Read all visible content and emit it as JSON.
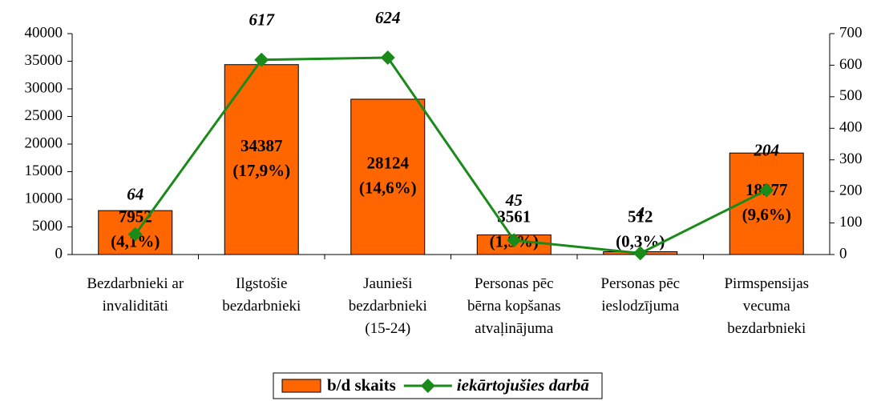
{
  "chart_data": {
    "type": "bar-line",
    "categories": [
      "Bezdarbnieki ar\ninvaliditāti",
      "Ilgstošie\nbezdarbnieki",
      "Jaunieši\nbezdarbnieki\n(15-24)",
      "Personas pēc\nbērna kopšanas\natvaļinājuma",
      "Personas pēc\nieslodzījuma",
      "Pirmspensijas\nvecuma\nbezdarbnieki"
    ],
    "series": [
      {
        "name": "b/d skaits",
        "type": "bar",
        "color": "#ff6600",
        "values": [
          7952,
          34387,
          28124,
          3561,
          512,
          18377
        ],
        "value_labels": [
          "7952\n(4,1%)",
          "34387\n(17,9%)",
          "28124\n(14,6%)",
          "3561\n(1,9%)",
          "512\n(0,3%)",
          "18377\n(9,6%)"
        ]
      },
      {
        "name": "iekārtojušies darbā",
        "type": "line",
        "axis": "y2",
        "color": "#1a8a1a",
        "values": [
          64,
          617,
          624,
          45,
          4,
          204
        ]
      }
    ],
    "ylim": [
      0,
      40000
    ],
    "yticks": [
      0,
      5000,
      10000,
      15000,
      20000,
      25000,
      30000,
      35000,
      40000
    ],
    "y2lim": [
      0,
      700
    ],
    "y2ticks": [
      0,
      100,
      200,
      300,
      400,
      500,
      600,
      700
    ],
    "legend": "bottom"
  }
}
